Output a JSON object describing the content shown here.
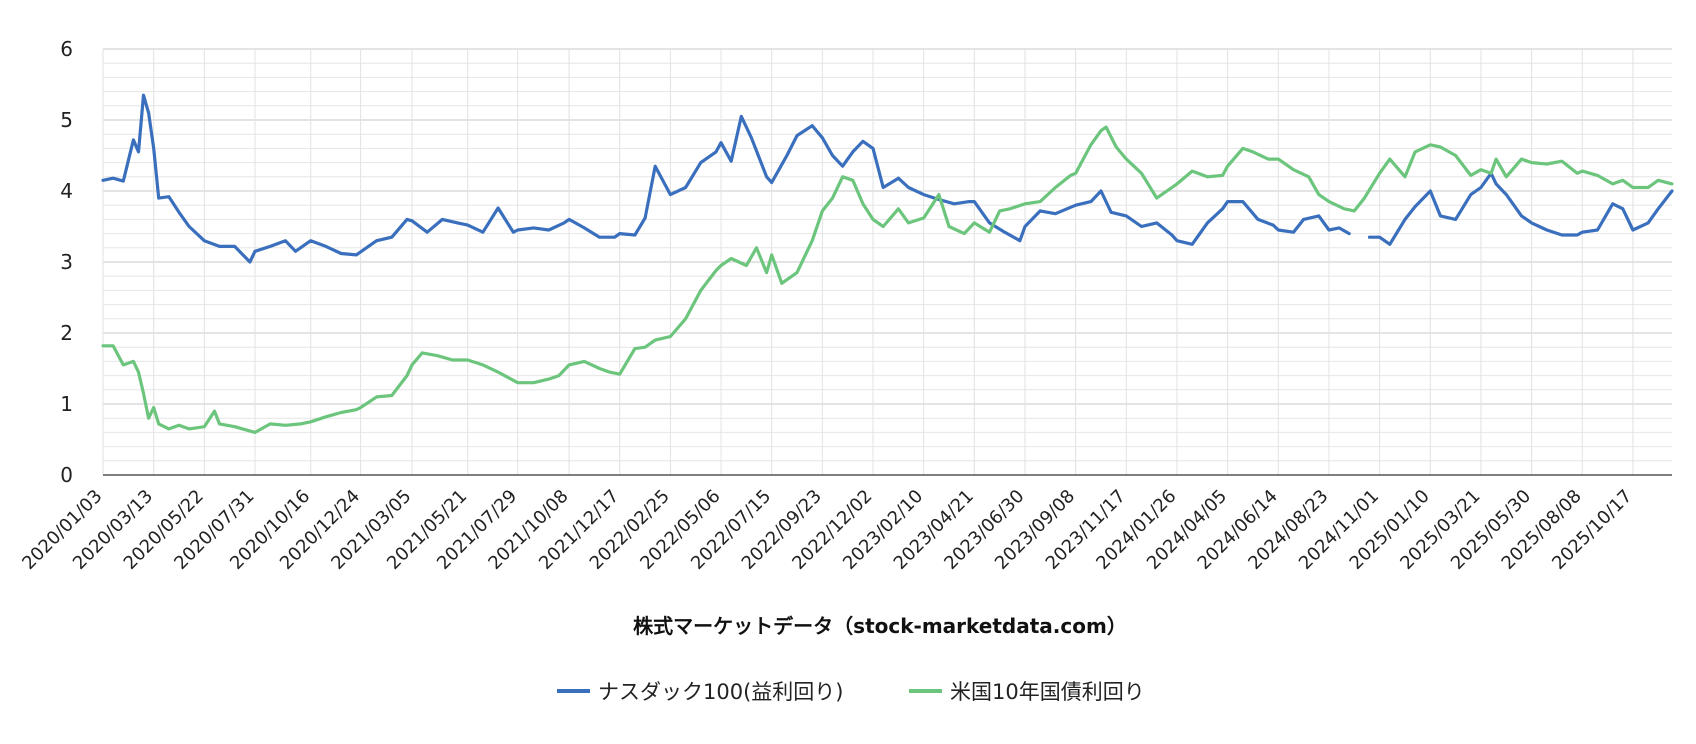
{
  "chart_data": {
    "type": "line",
    "title": "",
    "xlabel": "株式マーケットデータ（stock-marketdata.com）",
    "ylabel": "",
    "ylim": [
      0,
      6
    ],
    "yticks": [
      "0",
      "1",
      "2",
      "3",
      "4",
      "5",
      "6"
    ],
    "xlim": [
      "2020-01-03",
      "2025-12-10"
    ],
    "grid": true,
    "legend_position": "bottom",
    "xtick_labels": [
      "2020/01/03",
      "2020/03/13",
      "2020/05/22",
      "2020/07/31",
      "2020/10/16",
      "2020/12/24",
      "2021/03/05",
      "2021/05/21",
      "2021/07/29",
      "2021/10/08",
      "2021/12/17",
      "2022/02/25",
      "2022/05/06",
      "2022/07/15",
      "2022/09/23",
      "2022/12/02",
      "2023/02/10",
      "2023/04/21",
      "2023/06/30",
      "2023/09/08",
      "2023/11/17",
      "2024/01/26",
      "2024/04/05",
      "2024/06/14",
      "2024/08/23",
      "2024/11/01",
      "2025/01/10",
      "2025/03/21",
      "2025/05/30",
      "2025/08/08",
      "2025/10/17"
    ],
    "series": [
      {
        "name": "ナスダック100(益利回り)",
        "color": "#3a6fbd",
        "x": [
          "2020-01-03",
          "2020-01-17",
          "2020-01-31",
          "2020-02-14",
          "2020-02-21",
          "2020-02-28",
          "2020-03-06",
          "2020-03-13",
          "2020-03-20",
          "2020-04-03",
          "2020-04-17",
          "2020-05-01",
          "2020-05-22",
          "2020-06-12",
          "2020-07-03",
          "2020-07-24",
          "2020-07-31",
          "2020-08-21",
          "2020-09-11",
          "2020-09-25",
          "2020-10-16",
          "2020-11-06",
          "2020-11-27",
          "2020-12-18",
          "2021-01-15",
          "2021-02-05",
          "2021-02-26",
          "2021-03-05",
          "2021-03-26",
          "2021-04-16",
          "2021-05-07",
          "2021-05-21",
          "2021-06-11",
          "2021-07-02",
          "2021-07-23",
          "2021-07-29",
          "2021-08-20",
          "2021-09-10",
          "2021-10-01",
          "2021-10-08",
          "2021-10-29",
          "2021-11-19",
          "2021-12-10",
          "2021-12-17",
          "2022-01-07",
          "2022-01-21",
          "2022-02-04",
          "2022-02-25",
          "2022-03-18",
          "2022-04-08",
          "2022-04-29",
          "2022-05-06",
          "2022-05-20",
          "2022-06-03",
          "2022-06-17",
          "2022-07-08",
          "2022-07-15",
          "2022-08-05",
          "2022-08-19",
          "2022-09-09",
          "2022-09-23",
          "2022-10-07",
          "2022-10-21",
          "2022-11-04",
          "2022-11-18",
          "2022-12-02",
          "2022-12-16",
          "2023-01-06",
          "2023-01-20",
          "2023-02-10",
          "2023-03-03",
          "2023-03-24",
          "2023-04-14",
          "2023-04-21",
          "2023-05-12",
          "2023-06-02",
          "2023-06-23",
          "2023-06-30",
          "2023-07-21",
          "2023-08-11",
          "2023-09-08",
          "2023-09-29",
          "2023-10-13",
          "2023-10-27",
          "2023-11-17",
          "2023-12-08",
          "2023-12-29",
          "2024-01-19",
          "2024-01-26",
          "2024-02-16",
          "2024-03-08",
          "2024-03-29",
          "2024-04-05",
          "2024-04-26",
          "2024-05-17",
          "2024-06-07",
          "2024-06-14",
          "2024-07-05",
          "2024-07-19",
          "2024-08-09",
          "2024-08-23",
          "2024-09-06",
          "2024-09-20",
          "2024-10-04",
          "2024-10-18",
          "2024-11-01",
          "2024-11-15",
          "2024-12-06",
          "2024-12-20",
          "2025-01-10",
          "2025-01-24",
          "2025-02-14",
          "2025-03-07",
          "2025-03-21",
          "2025-04-04",
          "2025-04-11",
          "2025-04-25",
          "2025-05-16",
          "2025-05-30",
          "2025-06-20",
          "2025-07-11",
          "2025-08-01",
          "2025-08-08",
          "2025-08-29",
          "2025-09-19",
          "2025-10-03",
          "2025-10-17",
          "2025-11-07",
          "2025-11-21",
          "2025-12-10"
        ],
        "values": [
          4.15,
          4.18,
          4.14,
          4.72,
          4.55,
          5.35,
          5.1,
          4.6,
          3.9,
          3.92,
          3.7,
          3.5,
          3.3,
          3.22,
          3.22,
          3.0,
          3.15,
          3.22,
          3.3,
          3.15,
          3.3,
          3.22,
          3.12,
          3.1,
          3.3,
          3.35,
          3.6,
          3.58,
          3.42,
          3.6,
          3.55,
          3.52,
          3.42,
          3.76,
          3.42,
          3.45,
          3.48,
          3.45,
          3.55,
          3.6,
          3.48,
          3.35,
          3.35,
          3.4,
          3.38,
          3.62,
          4.35,
          3.95,
          4.05,
          4.4,
          4.55,
          4.68,
          4.42,
          5.05,
          4.75,
          4.2,
          4.12,
          4.5,
          4.78,
          4.92,
          4.75,
          4.5,
          4.35,
          4.55,
          4.7,
          4.6,
          4.05,
          4.18,
          4.05,
          3.95,
          3.88,
          3.82,
          3.85,
          3.85,
          3.55,
          3.42,
          3.3,
          3.5,
          3.72,
          3.68,
          3.8,
          3.85,
          4.0,
          3.7,
          3.65,
          3.5,
          3.55,
          3.38,
          3.3,
          3.25,
          3.55,
          3.75,
          3.85,
          3.85,
          3.6,
          3.52,
          3.45,
          3.42,
          3.6,
          3.65,
          3.45,
          3.48,
          3.4,
          null,
          3.35,
          3.35,
          3.25,
          3.6,
          3.78,
          4.0,
          3.65,
          3.6,
          3.95,
          4.05,
          4.25,
          4.1,
          3.95,
          3.65,
          3.55,
          3.45,
          3.38,
          3.38,
          3.42,
          3.45,
          3.82,
          3.75,
          3.45,
          3.55,
          3.75,
          4.0
        ]
      },
      {
        "name": "米国10年国債利回り",
        "color": "#6cc57c",
        "x": [
          "2020-01-03",
          "2020-01-17",
          "2020-01-31",
          "2020-02-14",
          "2020-02-21",
          "2020-02-28",
          "2020-03-06",
          "2020-03-13",
          "2020-03-20",
          "2020-04-03",
          "2020-04-17",
          "2020-05-01",
          "2020-05-22",
          "2020-06-05",
          "2020-06-12",
          "2020-07-03",
          "2020-07-31",
          "2020-08-21",
          "2020-09-11",
          "2020-10-02",
          "2020-10-16",
          "2020-11-06",
          "2020-11-27",
          "2020-12-18",
          "2020-12-24",
          "2021-01-15",
          "2021-02-05",
          "2021-02-26",
          "2021-03-05",
          "2021-03-19",
          "2021-04-09",
          "2021-04-30",
          "2021-05-21",
          "2021-06-11",
          "2021-07-02",
          "2021-07-29",
          "2021-08-20",
          "2021-09-10",
          "2021-09-24",
          "2021-10-08",
          "2021-10-29",
          "2021-11-19",
          "2021-12-03",
          "2021-12-17",
          "2022-01-07",
          "2022-01-21",
          "2022-02-04",
          "2022-02-25",
          "2022-03-18",
          "2022-04-08",
          "2022-04-29",
          "2022-05-06",
          "2022-05-20",
          "2022-06-10",
          "2022-06-24",
          "2022-07-08",
          "2022-07-15",
          "2022-07-29",
          "2022-08-19",
          "2022-09-09",
          "2022-09-23",
          "2022-10-07",
          "2022-10-21",
          "2022-11-04",
          "2022-11-18",
          "2022-12-02",
          "2022-12-16",
          "2023-01-06",
          "2023-01-20",
          "2023-02-10",
          "2023-03-03",
          "2023-03-17",
          "2023-04-07",
          "2023-04-21",
          "2023-05-12",
          "2023-05-26",
          "2023-06-09",
          "2023-06-30",
          "2023-07-21",
          "2023-08-11",
          "2023-09-01",
          "2023-09-08",
          "2023-09-29",
          "2023-10-13",
          "2023-10-20",
          "2023-11-03",
          "2023-11-17",
          "2023-12-08",
          "2023-12-29",
          "2024-01-19",
          "2024-01-26",
          "2024-02-16",
          "2024-03-08",
          "2024-03-29",
          "2024-04-05",
          "2024-04-26",
          "2024-05-10",
          "2024-05-31",
          "2024-06-14",
          "2024-07-05",
          "2024-07-26",
          "2024-08-09",
          "2024-08-23",
          "2024-09-13",
          "2024-09-27",
          "2024-10-11",
          "2024-11-01",
          "2024-11-15",
          "2024-12-06",
          "2024-12-20",
          "2025-01-10",
          "2025-01-24",
          "2025-02-14",
          "2025-03-07",
          "2025-03-21",
          "2025-04-04",
          "2025-04-11",
          "2025-04-25",
          "2025-05-16",
          "2025-05-30",
          "2025-06-20",
          "2025-07-11",
          "2025-08-01",
          "2025-08-08",
          "2025-08-29",
          "2025-09-19",
          "2025-10-03",
          "2025-10-17",
          "2025-11-07",
          "2025-11-21",
          "2025-12-10"
        ],
        "values": [
          1.82,
          1.82,
          1.55,
          1.6,
          1.45,
          1.15,
          0.8,
          0.95,
          0.72,
          0.65,
          0.7,
          0.65,
          0.68,
          0.9,
          0.72,
          0.68,
          0.6,
          0.72,
          0.7,
          0.72,
          0.75,
          0.82,
          0.88,
          0.92,
          0.95,
          1.1,
          1.12,
          1.4,
          1.55,
          1.72,
          1.68,
          1.62,
          1.62,
          1.55,
          1.45,
          1.3,
          1.3,
          1.35,
          1.4,
          1.55,
          1.6,
          1.5,
          1.45,
          1.42,
          1.78,
          1.8,
          1.9,
          1.95,
          2.2,
          2.6,
          2.88,
          2.95,
          3.05,
          2.95,
          3.2,
          2.85,
          3.1,
          2.7,
          2.85,
          3.3,
          3.72,
          3.9,
          4.2,
          4.15,
          3.82,
          3.6,
          3.5,
          3.75,
          3.55,
          3.62,
          3.95,
          3.5,
          3.4,
          3.55,
          3.42,
          3.72,
          3.75,
          3.82,
          3.85,
          4.05,
          4.22,
          4.25,
          4.65,
          4.85,
          4.9,
          4.62,
          4.45,
          4.25,
          3.9,
          4.05,
          4.1,
          4.28,
          4.2,
          4.22,
          4.35,
          4.6,
          4.55,
          4.45,
          4.45,
          4.3,
          4.2,
          3.95,
          3.85,
          3.75,
          3.72,
          3.9,
          4.25,
          4.45,
          4.2,
          4.55,
          4.65,
          4.62,
          4.5,
          4.22,
          4.3,
          4.25,
          4.45,
          4.2,
          4.45,
          4.4,
          4.38,
          4.42,
          4.25,
          4.28,
          4.22,
          4.1,
          4.15,
          4.05,
          4.05,
          4.15,
          4.1
        ]
      }
    ]
  }
}
